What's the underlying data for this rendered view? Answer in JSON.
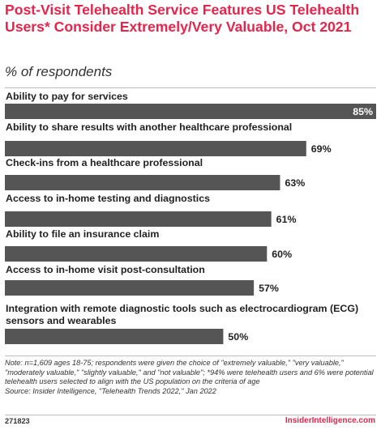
{
  "header": {
    "title": "Post-Visit Telehealth Service Features US Telehealth Users* Consider Extremely/Very Valuable, Oct 2021",
    "subtitle": "% of respondents"
  },
  "colors": {
    "accent": "#e8244b",
    "bar": "#555555",
    "text": "#222222"
  },
  "chart_data": {
    "type": "bar",
    "orientation": "horizontal",
    "title": "Post-Visit Telehealth Service Features US Telehealth Users* Consider Extremely/Very Valuable, Oct 2021",
    "subtitle": "% of respondents",
    "categories": [
      "Ability to pay for services",
      "Ability to share results with another healthcare professional",
      "Check-ins from a healthcare professional",
      "Access to in-home testing and diagnostics",
      "Ability to file an insurance claim",
      "Access to in-home visit post-consultation",
      "Integration with remote diagnostic tools such as electrocardiogram (ECG) sensors and wearables"
    ],
    "values": [
      85,
      69,
      63,
      61,
      60,
      57,
      50
    ],
    "value_labels": [
      "85%",
      "69%",
      "63%",
      "61%",
      "60%",
      "57%",
      "50%"
    ],
    "xlim": [
      0,
      85
    ],
    "grid": false,
    "legend": "none"
  },
  "notes": {
    "note": "Note: n=1,609 ages 18-75; respondents were given the choice of \"extremely valuable,\" \"very valuable,\" \"moderately valuable,\" \"slightly valuable,\" and \"not valuable\"; *94% were telehealth users and 6% were potential telehealth users selected to align with the US population on the criteria of age",
    "source": "Source: Insider Intelligence, \"Telehealth Trends 2022,\" Jan 2022"
  },
  "footer": {
    "chart_id": "271823",
    "brand": "InsiderIntelligence.com"
  }
}
